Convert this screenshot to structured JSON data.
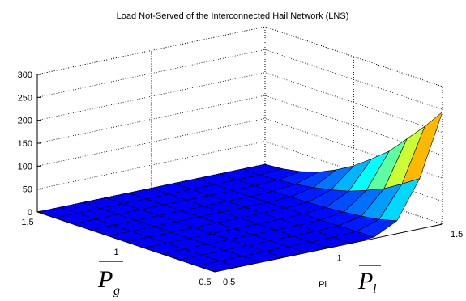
{
  "chart_data": {
    "type": "surface",
    "title": "Load Not-Served of the Interconnected Hail Network (LNS)",
    "xlabel": "Pl",
    "x_axis_label_symbol": "P",
    "x_axis_label_subscript": "l",
    "ylabel_symbol": "P",
    "ylabel_subscript": "g",
    "zlabel": "",
    "xlim": [
      0.5,
      1.5
    ],
    "ylim": [
      0.5,
      1.5
    ],
    "zlim": [
      0,
      300
    ],
    "x_ticks": [
      "0.5",
      "1",
      "1.5"
    ],
    "y_ticks": [
      "0.5",
      "1",
      "1.5"
    ],
    "z_ticks": [
      "0",
      "50",
      "100",
      "150",
      "200",
      "250",
      "300"
    ],
    "grid": true,
    "colormap": "jet",
    "x": [
      0.5,
      0.6,
      0.7,
      0.8,
      0.9,
      1.0,
      1.1,
      1.2,
      1.3,
      1.4,
      1.5
    ],
    "y": [
      0.5,
      0.6,
      0.7,
      0.8,
      0.9,
      1.0,
      1.1,
      1.2,
      1.3,
      1.4,
      1.5
    ],
    "z": [
      [
        0,
        0,
        0,
        0,
        0,
        0,
        0,
        0,
        0,
        0,
        0
      ],
      [
        0,
        0,
        0,
        0,
        0,
        0,
        0,
        0,
        0,
        0,
        0
      ],
      [
        0,
        0,
        0,
        0,
        0,
        0,
        0,
        0,
        0,
        0,
        0
      ],
      [
        0,
        0,
        0,
        0,
        0,
        0,
        0,
        0,
        0,
        0,
        0
      ],
      [
        0,
        0,
        0,
        0,
        0,
        0,
        0,
        0,
        0,
        0,
        0
      ],
      [
        0,
        0,
        0,
        0,
        0,
        0,
        0,
        0,
        0,
        0,
        0
      ],
      [
        0,
        0,
        0,
        0,
        0,
        0,
        0,
        0,
        0,
        0,
        0
      ],
      [
        3,
        2,
        2,
        1,
        1,
        1,
        0,
        0,
        0,
        0,
        0
      ],
      [
        28,
        18,
        12,
        8,
        5,
        3,
        2,
        1,
        0,
        0,
        0
      ],
      [
        110,
        85,
        62,
        45,
        30,
        20,
        12,
        6,
        2,
        0,
        0
      ],
      [
        245,
        200,
        160,
        120,
        90,
        62,
        40,
        22,
        10,
        3,
        0
      ]
    ]
  }
}
